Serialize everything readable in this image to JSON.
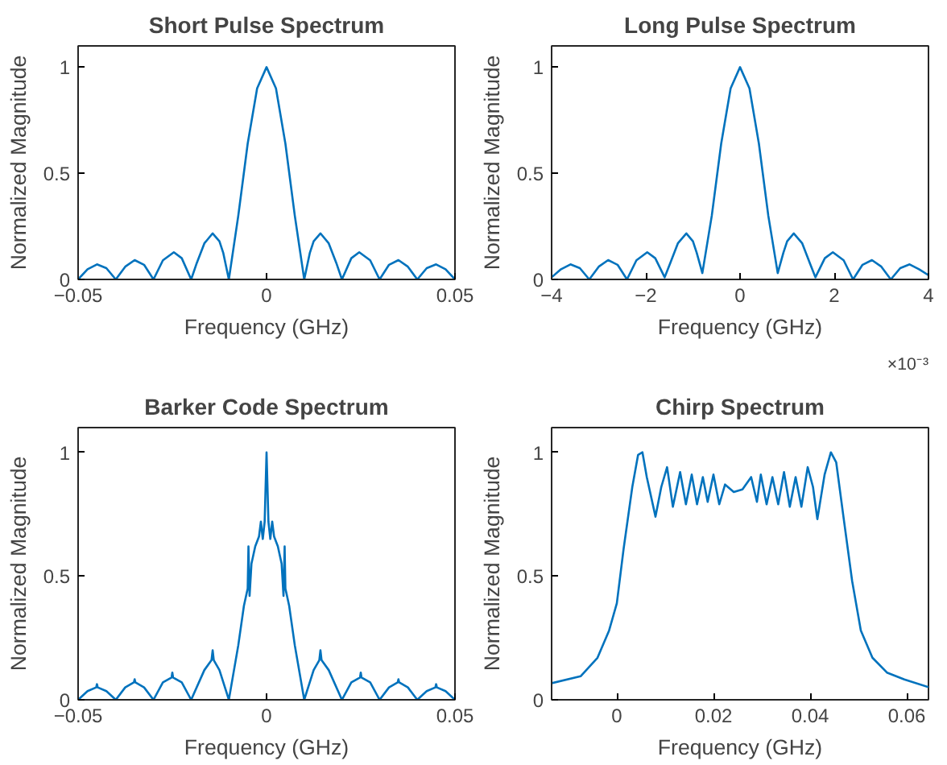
{
  "chart_data": [
    {
      "type": "line",
      "title": "Short Pulse Spectrum",
      "xlabel": "Frequency (GHz)",
      "ylabel": "Normalized Magnitude",
      "grid": false,
      "xlim": [
        -0.05,
        0.05
      ],
      "xticks": [
        -0.05,
        0,
        0.05
      ],
      "ylim": [
        0,
        1.1
      ],
      "yticks": [
        0,
        0.5,
        1
      ],
      "series": [
        {
          "color": "#0072bd",
          "x": [
            -0.05,
            -0.0475,
            -0.045,
            -0.0425,
            -0.04,
            -0.0375,
            -0.035,
            -0.0325,
            -0.03,
            -0.0275,
            -0.0246,
            -0.0225,
            -0.02,
            -0.0185,
            -0.0165,
            -0.0143,
            -0.0125,
            -0.0115,
            -0.01,
            -0.0075,
            -0.005,
            -0.0025,
            0,
            0.0025,
            0.005,
            0.0075,
            0.01,
            0.0115,
            0.0125,
            0.0143,
            0.0165,
            0.0185,
            0.02,
            0.0225,
            0.0246,
            0.0275,
            0.03,
            0.0325,
            0.035,
            0.0375,
            0.04,
            0.0425,
            0.045,
            0.0475,
            0.05
          ],
          "values": [
            0,
            0.048,
            0.071,
            0.053,
            0,
            0.06,
            0.091,
            0.069,
            0,
            0.09,
            0.128,
            0.1,
            0,
            0.078,
            0.17,
            0.217,
            0.18,
            0.126,
            0,
            0.3,
            0.64,
            0.9,
            1,
            0.9,
            0.64,
            0.3,
            0,
            0.126,
            0.18,
            0.217,
            0.17,
            0.078,
            0,
            0.1,
            0.128,
            0.09,
            0,
            0.069,
            0.091,
            0.06,
            0,
            0.053,
            0.071,
            0.048,
            0
          ]
        }
      ]
    },
    {
      "type": "line",
      "title": "Long Pulse Spectrum",
      "xlabel": "Frequency (GHz)",
      "ylabel": "Normalized Magnitude",
      "grid": false,
      "xlim": [
        -4,
        4
      ],
      "xticks": [
        -4,
        -2,
        0,
        2,
        4
      ],
      "ylim": [
        0,
        1.1
      ],
      "yticks": [
        0,
        0.5,
        1
      ],
      "annotations": [
        "×10⁻³"
      ],
      "series": [
        {
          "color": "#0072bd",
          "x": [
            -4,
            -3.8,
            -3.6,
            -3.4,
            -3.2,
            -3,
            -2.8,
            -2.6,
            -2.4,
            -2.2,
            -1.97,
            -1.8,
            -1.6,
            -1.48,
            -1.32,
            -1.14,
            -1,
            -0.92,
            -0.8,
            -0.6,
            -0.4,
            -0.2,
            0,
            0.2,
            0.4,
            0.6,
            0.8,
            0.92,
            1,
            1.14,
            1.32,
            1.48,
            1.6,
            1.8,
            1.97,
            2.2,
            2.4,
            2.6,
            2.8,
            3,
            3.2,
            3.4,
            3.6,
            3.8,
            4
          ],
          "values": [
            0.01,
            0.048,
            0.071,
            0.053,
            0,
            0.06,
            0.091,
            0.069,
            0,
            0.09,
            0.128,
            0.1,
            0.01,
            0.078,
            0.17,
            0.217,
            0.18,
            0.126,
            0.03,
            0.3,
            0.64,
            0.9,
            1,
            0.9,
            0.64,
            0.3,
            0.03,
            0.126,
            0.18,
            0.217,
            0.17,
            0.078,
            0.01,
            0.1,
            0.128,
            0.09,
            0,
            0.069,
            0.091,
            0.06,
            0,
            0.053,
            0.071,
            0.048,
            0.02
          ]
        }
      ]
    },
    {
      "type": "line",
      "title": "Barker Code Spectrum",
      "xlabel": "Frequency (GHz)",
      "ylabel": "Normalized Magnitude",
      "grid": false,
      "xlim": [
        -0.05,
        0.05
      ],
      "xticks": [
        -0.05,
        0,
        0.05
      ],
      "ylim": [
        0,
        1.1
      ],
      "yticks": [
        0,
        0.5,
        1
      ],
      "series": [
        {
          "color": "#0072bd",
          "x": [
            -0.05,
            -0.0475,
            -0.0452,
            -0.045,
            -0.0448,
            -0.0425,
            -0.04,
            -0.0375,
            -0.0352,
            -0.035,
            -0.0348,
            -0.0325,
            -0.03,
            -0.0275,
            -0.0252,
            -0.025,
            -0.0248,
            -0.0225,
            -0.02,
            -0.0165,
            -0.0146,
            -0.0143,
            -0.014,
            -0.0125,
            -0.01,
            -0.0075,
            -0.006,
            -0.005,
            -0.0048,
            -0.0045,
            -0.004,
            -0.003,
            -0.002,
            -0.0015,
            -0.001,
            -0.0005,
            0,
            0.0005,
            0.001,
            0.0015,
            0.002,
            0.003,
            0.004,
            0.0045,
            0.0048,
            0.005,
            0.006,
            0.0075,
            0.01,
            0.0125,
            0.014,
            0.0143,
            0.0146,
            0.0165,
            0.02,
            0.0225,
            0.0248,
            0.025,
            0.0252,
            0.0275,
            0.03,
            0.0325,
            0.0348,
            0.035,
            0.0352,
            0.0375,
            0.04,
            0.0425,
            0.0448,
            0.045,
            0.0452,
            0.0475,
            0.05
          ],
          "values": [
            0,
            0.035,
            0.05,
            0.063,
            0.05,
            0.035,
            0,
            0.05,
            0.07,
            0.083,
            0.07,
            0.05,
            0,
            0.07,
            0.09,
            0.11,
            0.09,
            0.07,
            0,
            0.12,
            0.16,
            0.2,
            0.16,
            0.12,
            0,
            0.22,
            0.38,
            0.45,
            0.62,
            0.42,
            0.55,
            0.62,
            0.66,
            0.72,
            0.65,
            0.72,
            1.0,
            0.72,
            0.65,
            0.72,
            0.66,
            0.62,
            0.55,
            0.42,
            0.62,
            0.45,
            0.38,
            0.22,
            0,
            0.12,
            0.16,
            0.2,
            0.16,
            0.12,
            0,
            0.07,
            0.09,
            0.11,
            0.09,
            0.07,
            0,
            0.05,
            0.07,
            0.083,
            0.07,
            0.05,
            0,
            0.035,
            0.05,
            0.063,
            0.05,
            0.035,
            0
          ]
        }
      ]
    },
    {
      "type": "line",
      "title": "Chirp Spectrum",
      "xlabel": "Frequency (GHz)",
      "ylabel": "Normalized Magnitude",
      "grid": false,
      "xlim": [
        -0.0135,
        0.0645
      ],
      "xticks": [
        0,
        0.02,
        0.04,
        0.06
      ],
      "ylim": [
        0,
        1.1
      ],
      "yticks": [
        0,
        0.5,
        1
      ],
      "series": [
        {
          "color": "#0072bd",
          "x": [
            -0.0135,
            -0.0075,
            -0.004,
            -0.0016,
            0,
            0.0014,
            0.0032,
            0.0044,
            0.0053,
            0.0062,
            0.008,
            0.0092,
            0.0104,
            0.0116,
            0.0131,
            0.0143,
            0.0155,
            0.0166,
            0.0178,
            0.0188,
            0.02,
            0.0212,
            0.0224,
            0.0242,
            0.026,
            0.0278,
            0.029,
            0.0298,
            0.031,
            0.0322,
            0.0334,
            0.0346,
            0.0358,
            0.037,
            0.0382,
            0.0395,
            0.0406,
            0.0415,
            0.043,
            0.0443,
            0.0454,
            0.0469,
            0.0487,
            0.0505,
            0.0529,
            0.0559,
            0.0595,
            0.0645
          ],
          "values": [
            0.067,
            0.095,
            0.17,
            0.28,
            0.39,
            0.61,
            0.86,
            0.99,
            1.0,
            0.9,
            0.74,
            0.86,
            0.94,
            0.78,
            0.92,
            0.79,
            0.91,
            0.79,
            0.9,
            0.8,
            0.91,
            0.79,
            0.87,
            0.84,
            0.85,
            0.9,
            0.8,
            0.91,
            0.79,
            0.9,
            0.79,
            0.92,
            0.78,
            0.9,
            0.78,
            0.94,
            0.86,
            0.73,
            0.91,
            1.0,
            0.96,
            0.74,
            0.48,
            0.28,
            0.17,
            0.11,
            0.082,
            0.051
          ]
        }
      ]
    }
  ]
}
